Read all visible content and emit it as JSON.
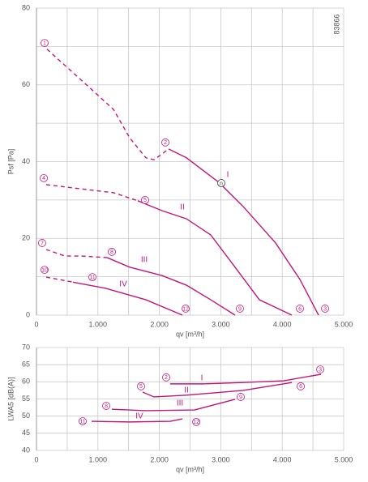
{
  "chart_data": [
    {
      "type": "line",
      "code": "83866",
      "xlabel": "qv [m³/h]",
      "ylabel": "Psf [Pa]",
      "xlim": [
        0,
        5000
      ],
      "ylim": [
        0,
        80
      ],
      "xticks": [
        0,
        {
          "value": 1000,
          "label": "1.000"
        },
        {
          "value": 2000,
          "label": "2.000"
        },
        {
          "value": 3000,
          "label": "3.000"
        },
        {
          "value": 4000,
          "label": "4.000"
        },
        {
          "value": 5000,
          "label": "5.000"
        }
      ],
      "yticks": [
        0,
        20,
        40,
        60,
        80
      ],
      "xgrid": [
        500,
        1500,
        2500,
        3500,
        4500
      ],
      "ygrid": [
        10,
        30,
        50,
        70
      ],
      "grid": true,
      "series": [
        {
          "color": "#c0167c",
          "dashed": true,
          "x": [
            170,
            725,
            1253,
            1517,
            1781,
            1913,
            2045,
            2150
          ],
          "values": [
            69.3,
            61.3,
            53.6,
            46.2,
            41,
            40.5,
            42,
            43.3
          ]
        },
        {
          "color": "#c0167c",
          "dashed": false,
          "x": [
            2150,
            2441,
            2968,
            3364,
            3892,
            4288,
            4591
          ],
          "values": [
            43.3,
            41,
            34.6,
            28.3,
            18.8,
            9.3,
            0
          ]
        },
        {
          "color": "#c0167c",
          "dashed": true,
          "x": [
            158,
            725,
            1253,
            1649
          ],
          "values": [
            34,
            32.9,
            31.9,
            29.8
          ]
        },
        {
          "color": "#c0167c",
          "dashed": false,
          "x": [
            1649,
            2045,
            2441,
            2836,
            3232,
            3628,
            4156
          ],
          "values": [
            29.8,
            27.2,
            25.1,
            20.9,
            12.5,
            4,
            0
          ]
        },
        {
          "color": "#c0167c",
          "dashed": true,
          "x": [
            158,
            462,
            725,
            1148
          ],
          "values": [
            17.1,
            15.4,
            15.4,
            15
          ]
        },
        {
          "color": "#c0167c",
          "dashed": false,
          "x": [
            1148,
            1517,
            2045,
            2441,
            2836,
            3232
          ],
          "values": [
            15,
            12.5,
            10.3,
            7.8,
            4,
            0
          ]
        },
        {
          "color": "#c0167c",
          "dashed": true,
          "x": [
            158,
            594
          ],
          "values": [
            9.9,
            8.6
          ]
        },
        {
          "color": "#c0167c",
          "dashed": false,
          "x": [
            594,
            1121,
            1781,
            2375
          ],
          "values": [
            8.6,
            7,
            4,
            0
          ]
        }
      ],
      "labels": [
        {
          "text": "I",
          "x": 3113,
          "y": 36.5
        },
        {
          "text": "II",
          "x": 2375,
          "y": 28.1
        },
        {
          "text": "III",
          "x": 1755,
          "y": 14.4
        },
        {
          "text": "IV",
          "x": 1412,
          "y": 8
        }
      ],
      "markers": [
        {
          "label": "1",
          "x": 132,
          "y": 70.9
        },
        {
          "label": "2",
          "x": 2098,
          "y": 45
        },
        {
          "label": "3",
          "x": 4697,
          "y": 1.7
        },
        {
          "label": "4",
          "x": 119,
          "y": 35.7
        },
        {
          "label": "5",
          "x": 1768,
          "y": 30
        },
        {
          "label": "6",
          "x": 4288,
          "y": 1.7
        },
        {
          "label": "7",
          "x": 92,
          "y": 18.8
        },
        {
          "label": "8",
          "x": 1227,
          "y": 16.5
        },
        {
          "label": "9",
          "x": 3311,
          "y": 1.7
        },
        {
          "label": "10",
          "x": 132,
          "y": 11.8
        },
        {
          "label": "11",
          "x": 910,
          "y": 9.9
        },
        {
          "label": "12",
          "x": 2428,
          "y": 1.7
        },
        {
          "label": "n",
          "x": 3008,
          "y": 34.4
        }
      ]
    },
    {
      "type": "line",
      "xlabel": "qv [m³/h]",
      "ylabel": "LWA5 [dB(A)]",
      "xlim": [
        0,
        5000
      ],
      "ylim": [
        40,
        70
      ],
      "xticks": [
        0,
        {
          "value": 1000,
          "label": "1.000"
        },
        {
          "value": 2000,
          "label": "2.000"
        },
        {
          "value": 3000,
          "label": "3.000"
        },
        {
          "value": 4000,
          "label": "4.000"
        },
        {
          "value": 5000,
          "label": "5.000"
        }
      ],
      "yticks": [
        40,
        45,
        50,
        55,
        60,
        65,
        70
      ],
      "xgrid": [
        500,
        1500,
        2500,
        3500,
        4500
      ],
      "ygrid": [],
      "grid": true,
      "series": [
        {
          "color": "#c0167c",
          "dashed": false,
          "x": [
            2177,
            2705,
            3364,
            4024,
            4631
          ],
          "values": [
            59.4,
            59.4,
            59.8,
            60.3,
            62.2
          ]
        },
        {
          "color": "#c0167c",
          "dashed": false,
          "x": [
            1728,
            1913,
            2441,
            3364,
            4156
          ],
          "values": [
            57,
            55.6,
            56.1,
            57.5,
            59.8
          ]
        },
        {
          "color": "#c0167c",
          "dashed": false,
          "x": [
            1227,
            1781,
            2573,
            3232
          ],
          "values": [
            52,
            51.6,
            51.8,
            54.9
          ]
        },
        {
          "color": "#c0167c",
          "dashed": false,
          "x": [
            897,
            1517,
            2177,
            2375
          ],
          "values": [
            48.5,
            48.3,
            48.5,
            49.2
          ]
        }
      ],
      "labels": [
        {
          "text": "I",
          "x": 2691,
          "y": 61
        },
        {
          "text": "II",
          "x": 2441,
          "y": 57.5
        },
        {
          "text": "III",
          "x": 2335,
          "y": 53.7
        },
        {
          "text": "IV",
          "x": 1675,
          "y": 49.9
        }
      ],
      "markers": [
        {
          "label": "2",
          "x": 2111,
          "y": 61.3
        },
        {
          "label": "3",
          "x": 4618,
          "y": 63.6
        },
        {
          "label": "5",
          "x": 1702,
          "y": 58.7
        },
        {
          "label": "6",
          "x": 4301,
          "y": 58.7
        },
        {
          "label": "8",
          "x": 1135,
          "y": 53
        },
        {
          "label": "9",
          "x": 3324,
          "y": 55.6
        },
        {
          "label": "11",
          "x": 752,
          "y": 48.5
        },
        {
          "label": "12",
          "x": 2600,
          "y": 48.3
        }
      ]
    }
  ]
}
